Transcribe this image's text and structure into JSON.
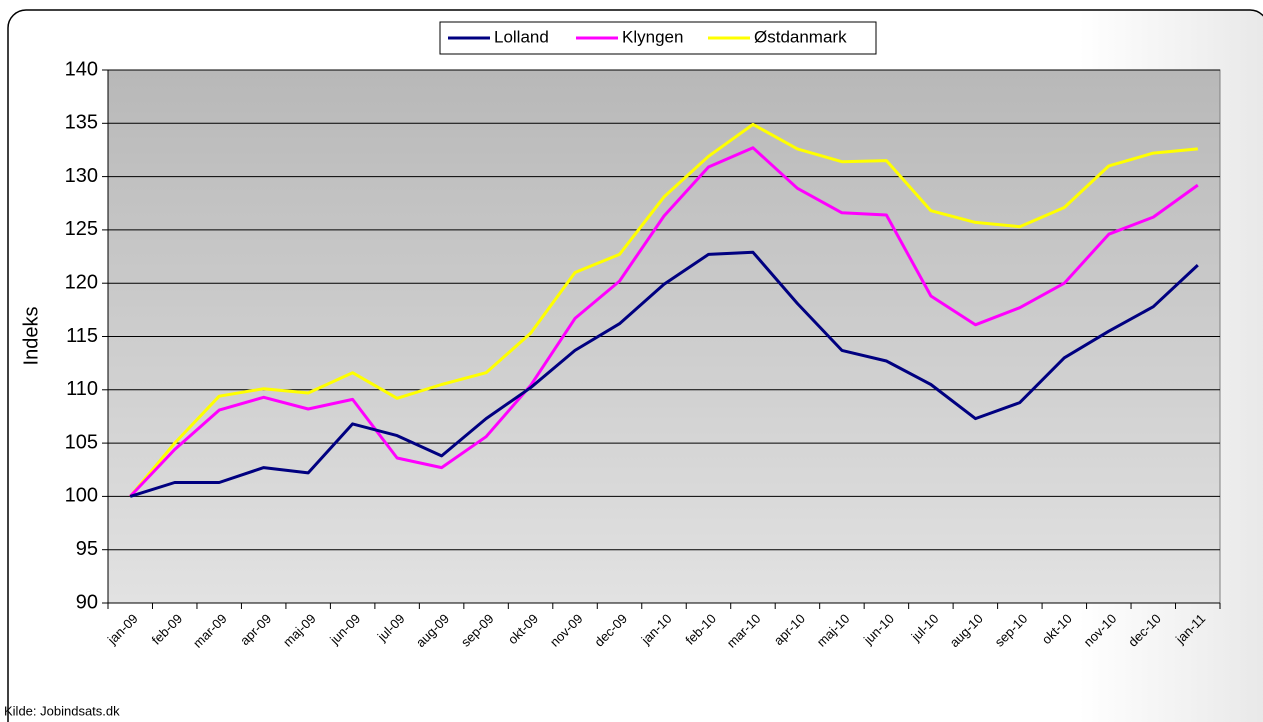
{
  "chart_data": {
    "type": "line",
    "y_label": "Indeks",
    "source": "Kilde: Jobindsats.dk",
    "categories": [
      "jan-09",
      "feb-09",
      "mar-09",
      "apr-09",
      "maj-09",
      "jun-09",
      "jul-09",
      "aug-09",
      "sep-09",
      "okt-09",
      "nov-09",
      "dec-09",
      "jan-10",
      "feb-10",
      "mar-10",
      "apr-10",
      "maj-10",
      "jun-10",
      "jul-10",
      "aug-10",
      "sep-10",
      "okt-10",
      "nov-10",
      "dec-10",
      "jan-11"
    ],
    "series": [
      {
        "name": "Lolland",
        "color": "#000080",
        "values": [
          100,
          101.3,
          101.3,
          102.7,
          102.2,
          106.8,
          105.7,
          103.8,
          107.3,
          110.2,
          113.7,
          116.2,
          119.9,
          122.7,
          122.9,
          118.1,
          113.7,
          112.7,
          110.5,
          107.3,
          108.8,
          113,
          115.5,
          117.8,
          121.7
        ]
      },
      {
        "name": "Klyngen",
        "color": "#ff00ff",
        "values": [
          100,
          104.4,
          108.1,
          109.3,
          108.2,
          109.1,
          103.6,
          102.7,
          105.6,
          110.4,
          116.7,
          120.2,
          126.3,
          130.9,
          132.7,
          128.9,
          126.6,
          126.4,
          118.8,
          116.1,
          117.7,
          120,
          124.6,
          126.2,
          129.2
        ]
      },
      {
        "name": "Østdanmark",
        "color": "#ffff00",
        "values": [
          100,
          105,
          109.4,
          110.1,
          109.7,
          111.6,
          109.2,
          110.5,
          111.6,
          115.3,
          121,
          122.7,
          128.1,
          131.9,
          134.9,
          132.6,
          131.4,
          131.5,
          126.8,
          125.7,
          125.3,
          127.1,
          131,
          132.2,
          132.6
        ]
      }
    ],
    "ylim": [
      90,
      140
    ],
    "yticks": [
      90,
      95,
      100,
      105,
      110,
      115,
      120,
      125,
      130,
      135,
      140
    ],
    "grid": true,
    "legend": "top"
  }
}
